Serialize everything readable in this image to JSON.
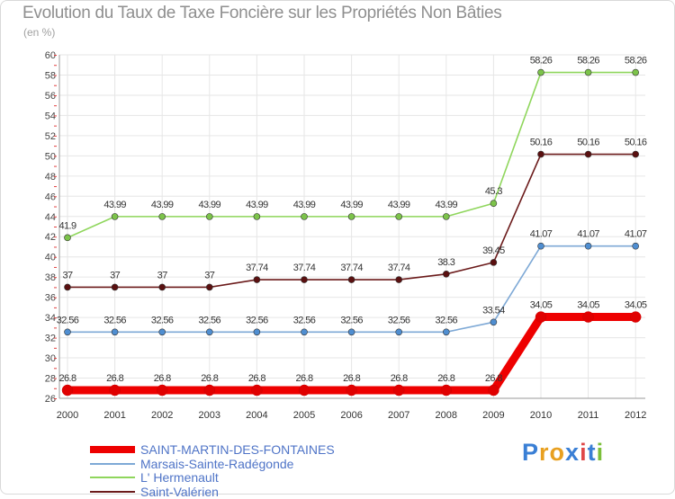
{
  "chart_data": {
    "type": "line",
    "title": "Evolution du Taux de Taxe Foncière sur les Propriétés Non Bâties",
    "subtitle": "(en %)",
    "xlabel": "",
    "ylabel": "(en %)",
    "categories": [
      "2000",
      "2001",
      "2002",
      "2003",
      "2004",
      "2005",
      "2006",
      "2007",
      "2008",
      "2009",
      "2010",
      "2011",
      "2012"
    ],
    "ylim": [
      26,
      60
    ],
    "yticks": [
      26,
      28,
      30,
      32,
      34,
      36,
      38,
      40,
      42,
      44,
      46,
      48,
      50,
      52,
      54,
      56,
      58,
      60
    ],
    "grid": true,
    "legend_position": "bottom-left",
    "series": [
      {
        "name": "Saint-Valérien",
        "color": "#6b1a1a",
        "point_color": "#5a1010",
        "values": [
          37,
          37,
          37,
          37,
          37.74,
          37.74,
          37.74,
          37.74,
          38.3,
          39.45,
          50.16,
          50.16,
          50.16
        ],
        "labels": [
          "37",
          "37",
          "37",
          "37",
          "37.74",
          "37.74",
          "37.74",
          "37.74",
          "38.3",
          "39.45",
          "50.16",
          "50.16",
          "50.16"
        ]
      },
      {
        "name": "L' Hermenault",
        "color": "#8fd65c",
        "point_color": "#7cc34a",
        "values": [
          41.9,
          43.99,
          43.99,
          43.99,
          43.99,
          43.99,
          43.99,
          43.99,
          43.99,
          45.3,
          58.26,
          58.26,
          58.26
        ],
        "labels": [
          "41.9",
          "43.99",
          "43.99",
          "43.99",
          "43.99",
          "43.99",
          "43.99",
          "43.99",
          "43.99",
          "45.3",
          "58.26",
          "58.26",
          "58.26"
        ]
      },
      {
        "name": "Marsais-Sainte-Radégonde",
        "color": "#7ea9d6",
        "point_color": "#4f8ed1",
        "values": [
          32.56,
          32.56,
          32.56,
          32.56,
          32.56,
          32.56,
          32.56,
          32.56,
          32.56,
          33.54,
          41.07,
          41.07,
          41.07
        ],
        "labels": [
          "32.56",
          "32.56",
          "32.56",
          "32.56",
          "32.56",
          "32.56",
          "32.56",
          "32.56",
          "32.56",
          "33.54",
          "41.07",
          "41.07",
          "41.07"
        ]
      },
      {
        "name": "SAINT-MARTIN-DES-FONTAINES",
        "color": "#ee0000",
        "point_color": "#e00000",
        "values": [
          26.8,
          26.8,
          26.8,
          26.8,
          26.8,
          26.8,
          26.8,
          26.8,
          26.8,
          26.8,
          34.05,
          34.05,
          34.05
        ],
        "labels": [
          "26.8",
          "26.8",
          "26.8",
          "26.8",
          "26.8",
          "26.8",
          "26.8",
          "26.8",
          "26.8",
          "26.8",
          "34.05",
          "34.05",
          "34.05"
        ]
      }
    ]
  },
  "legend": {
    "items": [
      {
        "name": "SAINT-MARTIN-DES-FONTAINES",
        "color": "#ee0000"
      },
      {
        "name": "Marsais-Sainte-Radégonde",
        "color": "#7ea9d6"
      },
      {
        "name": "L' Hermenault",
        "color": "#8fd65c"
      },
      {
        "name": "Saint-Valérien",
        "color": "#6b1a1a"
      }
    ]
  },
  "logo": {
    "letters": [
      "P",
      "r",
      "o",
      "x",
      "i",
      "t",
      "i"
    ],
    "colors": [
      "#3a7fd5",
      "#e8a020",
      "#e8a020",
      "#3a7fd5",
      "#e04848",
      "#3a7fd5",
      "#7cbf3a"
    ]
  }
}
